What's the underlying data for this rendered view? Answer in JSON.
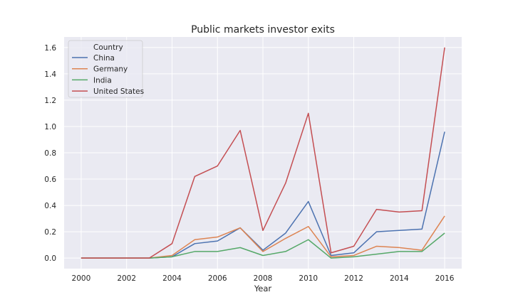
{
  "chart_data": {
    "type": "line",
    "title": "Public markets investor exits",
    "xlabel": "Year",
    "ylabel": "",
    "x": [
      2000,
      2001,
      2002,
      2003,
      2004,
      2005,
      2006,
      2007,
      2008,
      2009,
      2010,
      2011,
      2012,
      2013,
      2014,
      2015,
      2016
    ],
    "xlim": [
      1999.25,
      2016.75
    ],
    "ylim": [
      -0.08,
      1.68
    ],
    "xticks": [
      2000,
      2002,
      2004,
      2006,
      2008,
      2010,
      2012,
      2014,
      2016
    ],
    "yticks": [
      "0.0",
      "0.2",
      "0.4",
      "0.6",
      "0.8",
      "1.0",
      "1.2",
      "1.4",
      "1.6"
    ],
    "grid": true,
    "legend": {
      "title": "Country",
      "position": "top-left"
    },
    "series": [
      {
        "name": "China",
        "color": "#4c72b0",
        "values": [
          0,
          0,
          0,
          0,
          0.01,
          0.11,
          0.13,
          0.23,
          0.06,
          0.19,
          0.43,
          0.02,
          0.04,
          0.2,
          0.21,
          0.22,
          0.96
        ]
      },
      {
        "name": "Germany",
        "color": "#dd8452",
        "values": [
          0,
          0,
          0,
          0,
          0.02,
          0.14,
          0.16,
          0.23,
          0.05,
          0.15,
          0.24,
          0.01,
          0.02,
          0.09,
          0.08,
          0.06,
          0.32
        ]
      },
      {
        "name": "India",
        "color": "#55a868",
        "values": [
          0,
          0,
          0,
          0,
          0.01,
          0.05,
          0.05,
          0.08,
          0.02,
          0.05,
          0.14,
          0.0,
          0.01,
          0.03,
          0.05,
          0.05,
          0.19
        ]
      },
      {
        "name": "United States",
        "color": "#c44e52",
        "values": [
          0,
          0,
          0,
          0,
          0.11,
          0.62,
          0.7,
          0.97,
          0.21,
          0.57,
          1.1,
          0.04,
          0.09,
          0.37,
          0.35,
          0.36,
          1.6
        ]
      }
    ]
  }
}
